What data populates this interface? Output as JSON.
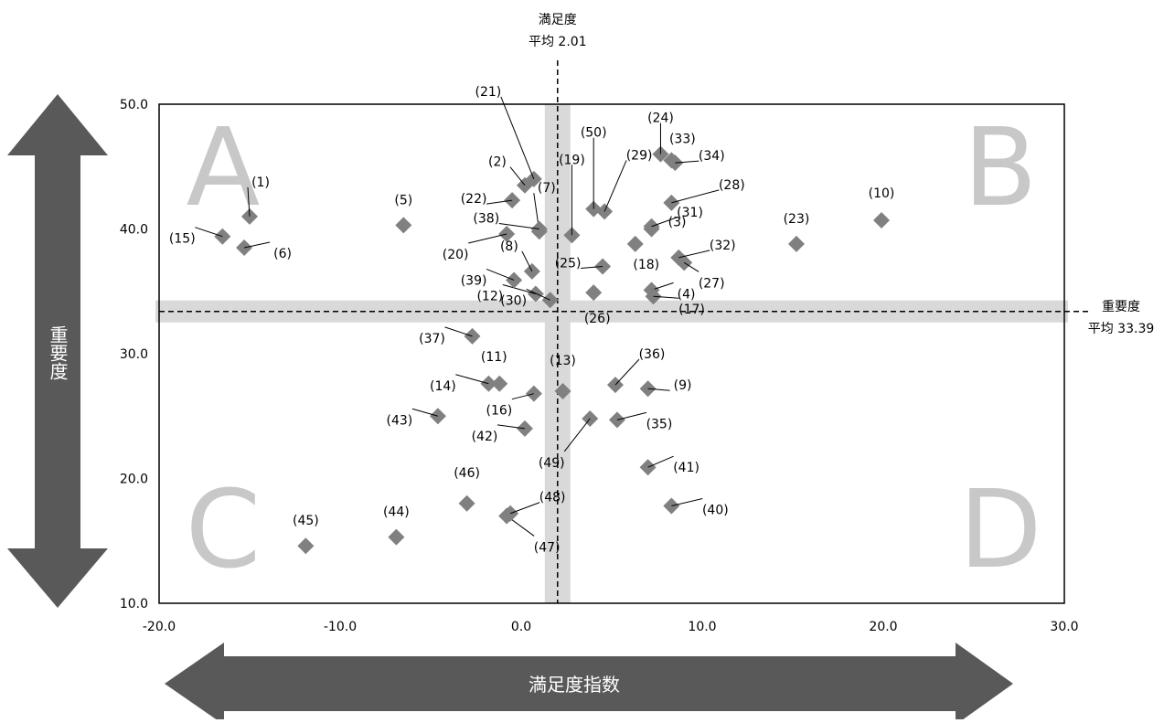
{
  "chart_data": {
    "type": "scatter",
    "title": "",
    "xlabel": "満足度指数",
    "ylabel": "重要度",
    "xlim": [
      -20,
      30
    ],
    "ylim": [
      10,
      50
    ],
    "x_ticks": [
      "-20.0",
      "-10.0",
      "0.0",
      "10.0",
      "20.0",
      "30.0"
    ],
    "y_ticks": [
      "10.0",
      "20.0",
      "30.0",
      "40.0",
      "50.0"
    ],
    "grid": false,
    "legend": "none",
    "marker_color": "#808080",
    "band_color": "#d9d9d9",
    "quadrant_color": "#c8c8c8",
    "arrow_color": "#595959",
    "quadrants": [
      "A",
      "B",
      "C",
      "D"
    ],
    "reference_lines": {
      "x": {
        "value": 2.01,
        "label_line1": "満足度",
        "label_line2": "平均 2.01"
      },
      "y": {
        "value": 33.39,
        "label_line1": "重要度",
        "label_line2": "平均 33.39"
      }
    },
    "points": [
      {
        "label": "(1)",
        "x": -15.0,
        "y": 41.0
      },
      {
        "label": "(2)",
        "x": 0.2,
        "y": 43.5
      },
      {
        "label": "(3)",
        "x": 7.2,
        "y": 40.0
      },
      {
        "label": "(4)",
        "x": 7.2,
        "y": 35.1
      },
      {
        "label": "(5)",
        "x": -6.5,
        "y": 40.3
      },
      {
        "label": "(6)",
        "x": -15.3,
        "y": 38.5
      },
      {
        "label": "(7)",
        "x": 1.0,
        "y": 39.8
      },
      {
        "label": "(8)",
        "x": 0.6,
        "y": 36.6
      },
      {
        "label": "(9)",
        "x": 7.0,
        "y": 27.2
      },
      {
        "label": "(10)",
        "x": 19.9,
        "y": 40.7
      },
      {
        "label": "(11)",
        "x": -1.2,
        "y": 27.6
      },
      {
        "label": "(12)",
        "x": 0.8,
        "y": 34.8
      },
      {
        "label": "(13)",
        "x": 2.3,
        "y": 27.0
      },
      {
        "label": "(14)",
        "x": -1.8,
        "y": 27.6
      },
      {
        "label": "(15)",
        "x": -16.5,
        "y": 39.4
      },
      {
        "label": "(16)",
        "x": 0.7,
        "y": 26.8
      },
      {
        "label": "(17)",
        "x": 7.3,
        "y": 34.6
      },
      {
        "label": "(18)",
        "x": 6.3,
        "y": 38.8
      },
      {
        "label": "(19)",
        "x": 2.8,
        "y": 39.5
      },
      {
        "label": "(20)",
        "x": -0.8,
        "y": 39.6
      },
      {
        "label": "(21)",
        "x": 0.7,
        "y": 44.0
      },
      {
        "label": "(22)",
        "x": -0.5,
        "y": 42.3
      },
      {
        "label": "(23)",
        "x": 15.2,
        "y": 38.8
      },
      {
        "label": "(24)",
        "x": 7.7,
        "y": 46.0
      },
      {
        "label": "(25)",
        "x": 4.5,
        "y": 37.0
      },
      {
        "label": "(26)",
        "x": 4.0,
        "y": 34.9
      },
      {
        "label": "(27)",
        "x": 9.0,
        "y": 37.3
      },
      {
        "label": "(28)",
        "x": 8.3,
        "y": 42.1
      },
      {
        "label": "(29)",
        "x": 4.6,
        "y": 41.4
      },
      {
        "label": "(30)",
        "x": 1.6,
        "y": 34.3
      },
      {
        "label": "(31)",
        "x": 7.2,
        "y": 40.2
      },
      {
        "label": "(32)",
        "x": 8.7,
        "y": 37.7
      },
      {
        "label": "(33)",
        "x": 8.3,
        "y": 45.5
      },
      {
        "label": "(34)",
        "x": 8.5,
        "y": 45.3
      },
      {
        "label": "(35)",
        "x": 5.3,
        "y": 24.7
      },
      {
        "label": "(36)",
        "x": 5.2,
        "y": 27.5
      },
      {
        "label": "(37)",
        "x": -2.7,
        "y": 31.4
      },
      {
        "label": "(38)",
        "x": 1.0,
        "y": 40.0
      },
      {
        "label": "(39)",
        "x": -0.4,
        "y": 35.9
      },
      {
        "label": "(40)",
        "x": 8.3,
        "y": 17.8
      },
      {
        "label": "(41)",
        "x": 7.0,
        "y": 20.9
      },
      {
        "label": "(42)",
        "x": 0.2,
        "y": 24.0
      },
      {
        "label": "(43)",
        "x": -4.6,
        "y": 25.0
      },
      {
        "label": "(44)",
        "x": -6.9,
        "y": 15.3
      },
      {
        "label": "(45)",
        "x": -11.9,
        "y": 14.6
      },
      {
        "label": "(46)",
        "x": -3.0,
        "y": 18.0
      },
      {
        "label": "(47)",
        "x": -0.8,
        "y": 17.0
      },
      {
        "label": "(48)",
        "x": -0.6,
        "y": 17.2
      },
      {
        "label": "(49)",
        "x": 3.8,
        "y": 24.8
      },
      {
        "label": "(50)",
        "x": 4.0,
        "y": 41.6
      }
    ]
  }
}
